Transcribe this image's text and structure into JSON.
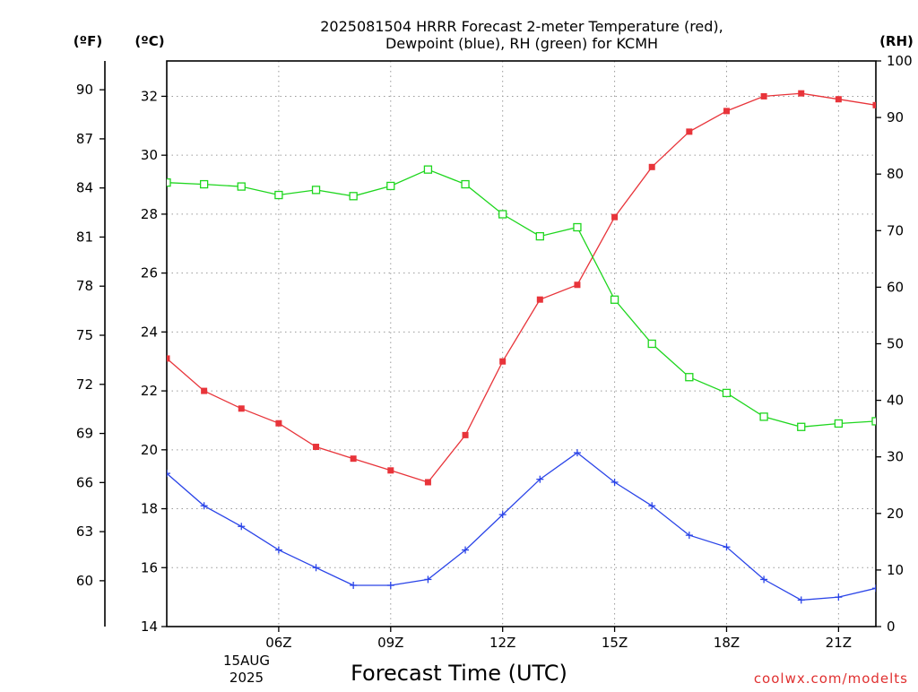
{
  "title_line1": "2025081504 HRRR Forecast 2-meter Temperature (red),",
  "title_line2": "Dewpoint (blue), RH (green) for KCMH",
  "unit_f": "(ºF)",
  "unit_c": "(ºC)",
  "unit_rh": "(RH)",
  "xlabel": "Forecast Time (UTC)",
  "credit": "coolwx.com/modelts",
  "date_line1": "15AUG",
  "date_line2": "2025",
  "chart_data": {
    "type": "line",
    "x_hours": [
      3,
      4,
      5,
      6,
      7,
      8,
      9,
      10,
      11,
      12,
      13,
      14,
      15,
      16,
      17,
      18,
      19,
      20,
      21,
      22
    ],
    "xlim": [
      3,
      22
    ],
    "x_ticks": [
      {
        "hour": 6,
        "label": "06Z"
      },
      {
        "hour": 9,
        "label": "09Z"
      },
      {
        "hour": 12,
        "label": "12Z"
      },
      {
        "hour": 15,
        "label": "15Z"
      },
      {
        "hour": 18,
        "label": "18Z"
      },
      {
        "hour": 21,
        "label": "21Z"
      }
    ],
    "y_left_c": {
      "range": [
        14,
        33.2
      ],
      "ticks": [
        14,
        16,
        18,
        20,
        22,
        24,
        26,
        28,
        30,
        32
      ]
    },
    "y_left_f": {
      "ticks": [
        60,
        63,
        66,
        69,
        72,
        75,
        78,
        81,
        84,
        87,
        90
      ]
    },
    "y_right_rh": {
      "range": [
        0,
        100
      ],
      "ticks": [
        0,
        10,
        20,
        30,
        40,
        50,
        60,
        70,
        80,
        90,
        100
      ]
    },
    "grid": true,
    "series": [
      {
        "name": "2-meter Temperature (red)",
        "axis": "c",
        "color": "#e8343a",
        "marker": "filled-square",
        "values": [
          23.1,
          22.0,
          21.4,
          20.9,
          20.1,
          19.7,
          19.3,
          18.9,
          20.5,
          23.0,
          25.1,
          25.6,
          27.9,
          29.6,
          30.8,
          31.5,
          32.0,
          32.1,
          31.9,
          31.7
        ]
      },
      {
        "name": "Dewpoint (blue)",
        "axis": "c",
        "color": "#2a44e8",
        "marker": "plus",
        "values": [
          19.2,
          18.1,
          17.4,
          16.6,
          16.0,
          15.4,
          15.4,
          15.6,
          16.6,
          17.8,
          19.0,
          19.9,
          18.9,
          18.1,
          17.1,
          16.7,
          15.6,
          14.9,
          15.0,
          15.3
        ]
      },
      {
        "name": "RH (green)",
        "axis": "rh",
        "color": "#1ed61e",
        "marker": "open-square",
        "values": [
          78.5,
          78.2,
          77.8,
          76.3,
          77.2,
          76.1,
          77.9,
          80.8,
          78.2,
          72.9,
          69.0,
          70.6,
          57.8,
          50.0,
          44.1,
          41.3,
          37.1,
          35.3,
          35.9,
          36.3
        ]
      }
    ]
  }
}
